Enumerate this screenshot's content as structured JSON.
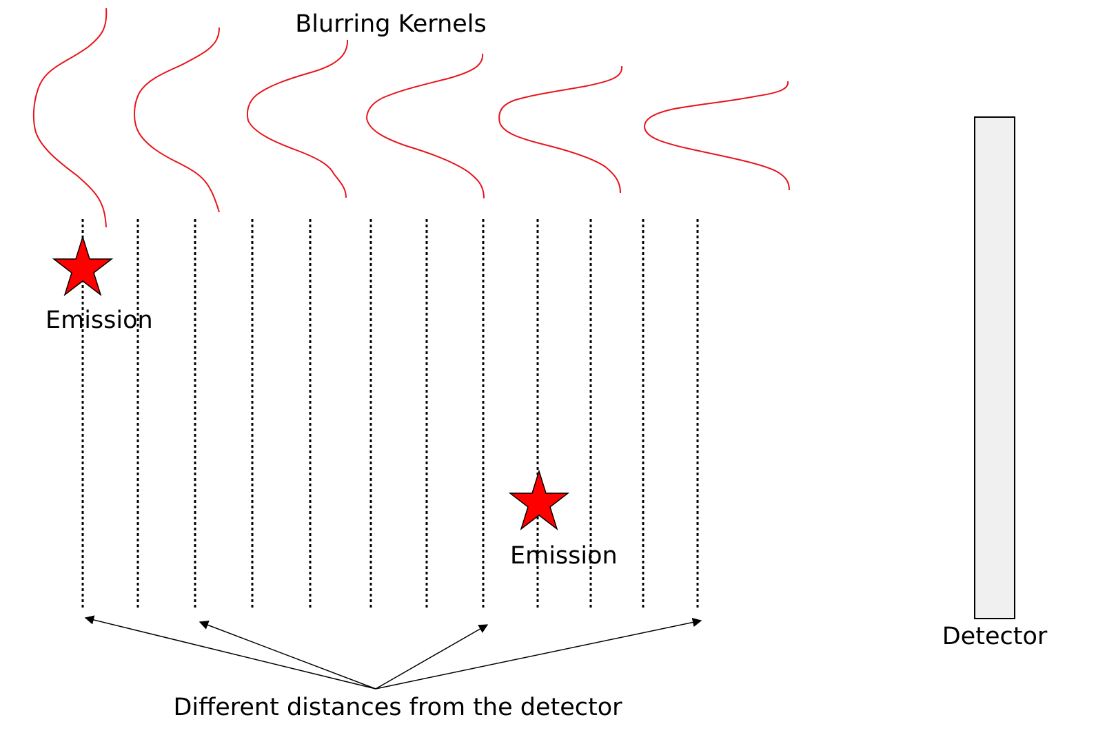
{
  "title": "Blurring Kernels",
  "detector_label": "Detector",
  "distances_label": "Different distances from the detector",
  "emissions": [
    {
      "label": "Emission"
    },
    {
      "label": "Emission"
    }
  ],
  "colors": {
    "kernel": "#e8141b",
    "star_fill": "#ff0000",
    "star_stroke": "#000000",
    "lines": "#000000",
    "detector_fill": "#f0f0f0",
    "detector_stroke": "#000000",
    "background": "#ffffff"
  }
}
